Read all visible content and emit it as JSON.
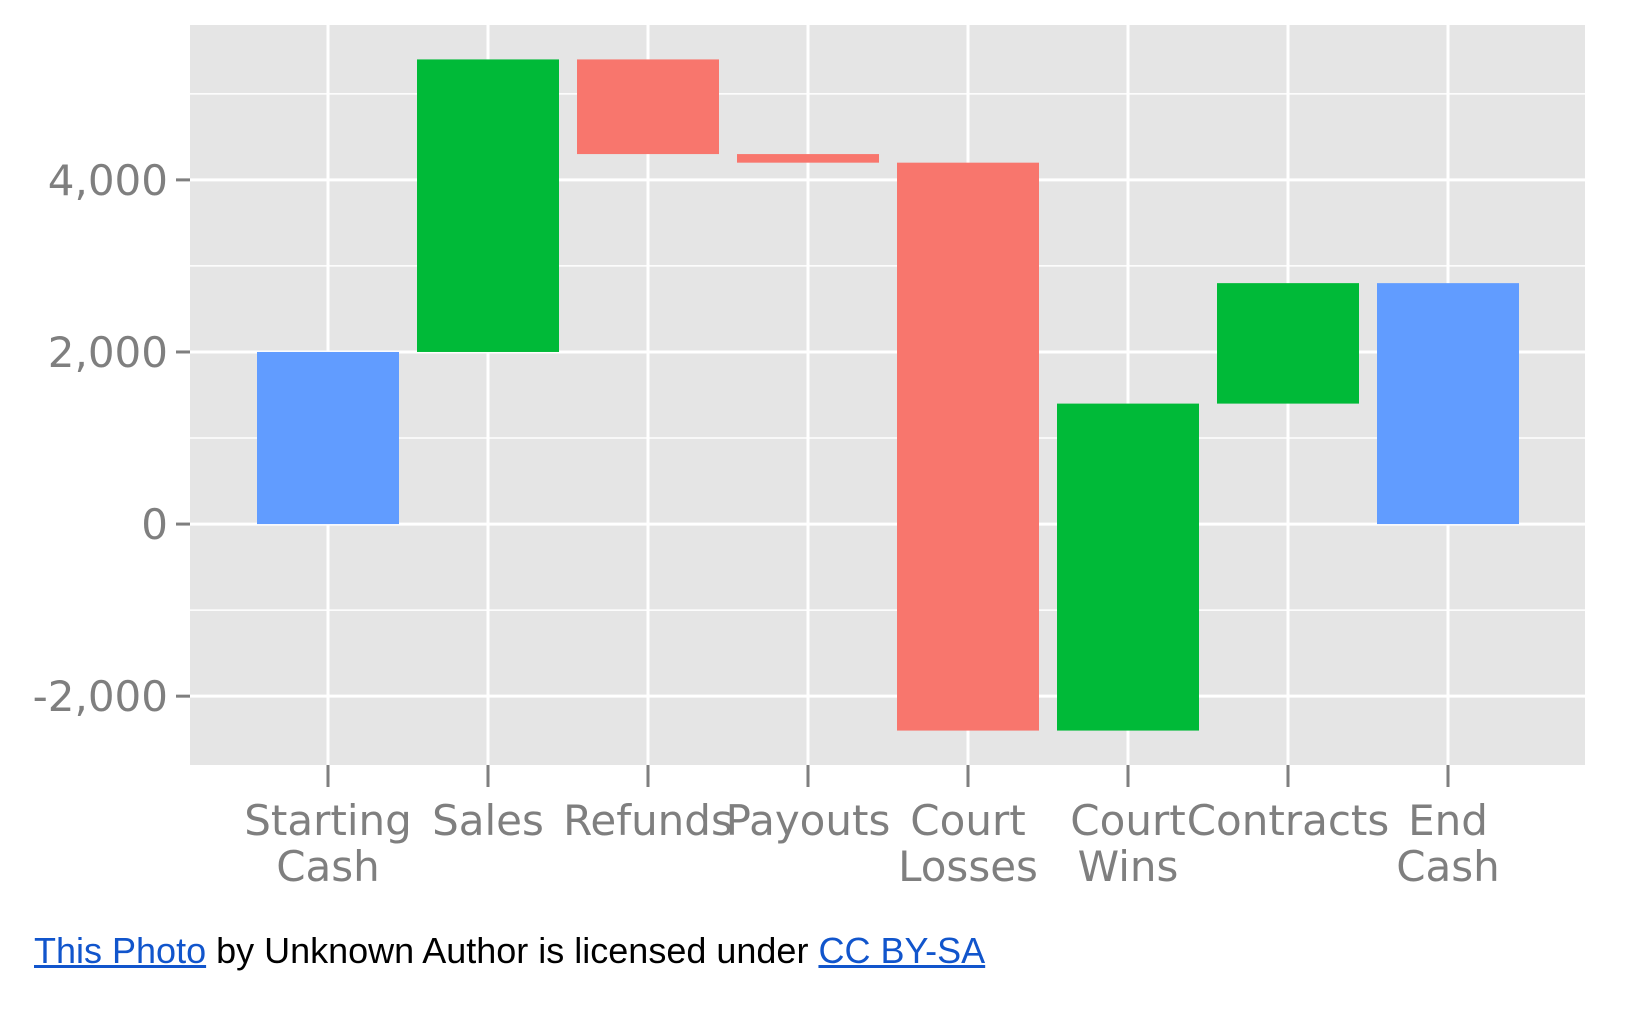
{
  "chart_data": {
    "type": "bar",
    "subtype": "waterfall",
    "categories": [
      [
        "Starting",
        "Cash"
      ],
      [
        "Sales"
      ],
      [
        "Refunds"
      ],
      [
        "Payouts"
      ],
      [
        "Court",
        "Losses"
      ],
      [
        "Court",
        "Wins"
      ],
      [
        "Contracts"
      ],
      [
        "End",
        "Cash"
      ]
    ],
    "bars": [
      {
        "start": 0,
        "end": 2000,
        "kind": "total"
      },
      {
        "start": 2000,
        "end": 5400,
        "kind": "increase"
      },
      {
        "start": 5400,
        "end": 4300,
        "kind": "decrease"
      },
      {
        "start": 4300,
        "end": 4200,
        "kind": "decrease"
      },
      {
        "start": 4200,
        "end": -2400,
        "kind": "decrease"
      },
      {
        "start": -2400,
        "end": 1400,
        "kind": "increase"
      },
      {
        "start": 1400,
        "end": 2800,
        "kind": "increase"
      },
      {
        "start": 0,
        "end": 2800,
        "kind": "total"
      }
    ],
    "yticks": [
      {
        "value": -2000,
        "label": "-2,000"
      },
      {
        "value": 0,
        "label": "0"
      },
      {
        "value": 2000,
        "label": "2,000"
      },
      {
        "value": 4000,
        "label": "4,000"
      }
    ],
    "ylim": [
      -2800,
      5800
    ],
    "grid": true,
    "legend": "none",
    "colors": {
      "increase": "#00ba38",
      "decrease": "#f8766d",
      "total": "#619cff",
      "panel": "#e5e5e5",
      "grid": "#ffffff"
    },
    "title": "",
    "xlabel": "",
    "ylabel": ""
  },
  "credit": {
    "link1": "This Photo",
    "middle": " by Unknown Author is licensed under ",
    "link2": "CC BY-SA"
  }
}
